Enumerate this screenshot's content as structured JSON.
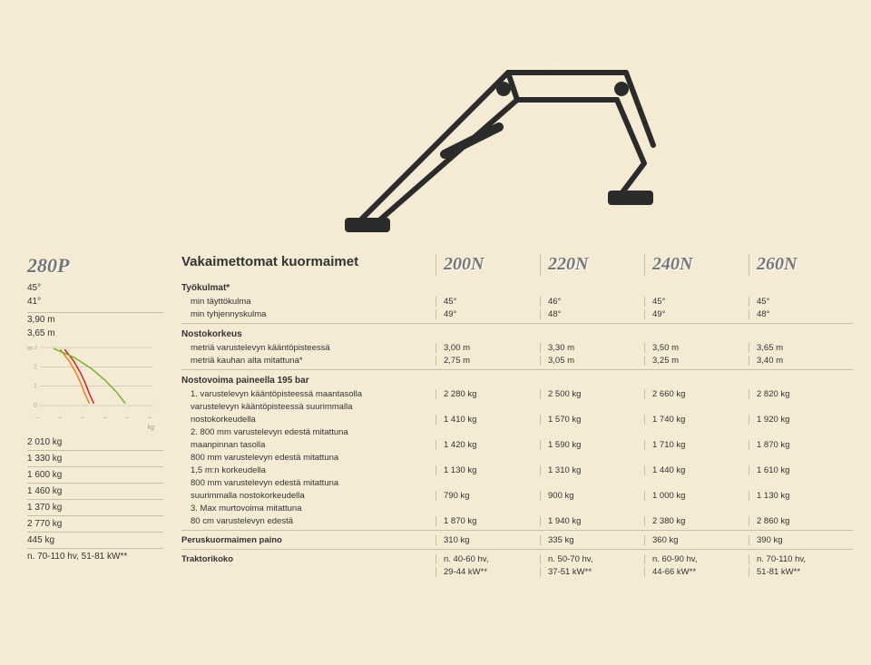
{
  "colors": {
    "page_bg": "#f5ebd4",
    "text": "#333333",
    "muted": "#777777",
    "rule": "#c8bfa8",
    "chart_axis": "#aaaaaa",
    "curve_orange": "#f07c1c",
    "curve_red": "#d81f26",
    "curve_green": "#77b02a"
  },
  "typography": {
    "body_family": "Helvetica Neue, Arial, sans-serif",
    "body_size_pt": 10,
    "model_family": "Georgia, serif",
    "model_size_pt": 22,
    "model_style": "italic bold",
    "heading_size_pt": 15
  },
  "left": {
    "model": "280P",
    "angle1": "45°",
    "angle2": "41°",
    "height1": "3,90 m",
    "height2": "3,65 m",
    "chart": {
      "type": "line",
      "y_label": "m",
      "x_label": "kg",
      "x_ticks": [
        "500",
        "1 000",
        "1 500",
        "2 000",
        "2 500",
        "3 000"
      ],
      "y_ticks": [
        "0",
        "1",
        "2",
        "3"
      ],
      "xlim": [
        500,
        3000
      ],
      "ylim": [
        0,
        3
      ],
      "bg": "#f5ebd4",
      "axis_color": "#aaaaaa",
      "tick_fontsize": 7,
      "curves": [
        {
          "color": "#f07c1c",
          "width": 1.5,
          "points": [
            [
              1600,
              0.1
            ],
            [
              1500,
              0.6
            ],
            [
              1400,
              1.2
            ],
            [
              1300,
              1.7
            ],
            [
              1150,
              2.3
            ],
            [
              950,
              2.9
            ]
          ]
        },
        {
          "color": "#d81f26",
          "width": 1.5,
          "points": [
            [
              1700,
              0.1
            ],
            [
              1600,
              0.6
            ],
            [
              1500,
              1.2
            ],
            [
              1400,
              1.7
            ],
            [
              1250,
              2.3
            ],
            [
              1050,
              2.9
            ]
          ]
        },
        {
          "color": "#77b02a",
          "width": 1.5,
          "points": [
            [
              2400,
              0.1
            ],
            [
              2200,
              0.7
            ],
            [
              1950,
              1.3
            ],
            [
              1650,
              1.9
            ],
            [
              1250,
              2.5
            ],
            [
              800,
              2.95
            ]
          ]
        }
      ]
    },
    "side_values": [
      "2 010 kg",
      "1 330 kg",
      "1 600 kg",
      "1 460 kg",
      "1 370 kg",
      "2 770 kg",
      "445 kg",
      "n. 70-110 hv, 51-81 kW**"
    ]
  },
  "spec": {
    "heading": "Vakaimettomat kuormaimet",
    "models": [
      "200N",
      "220N",
      "240N",
      "260N"
    ],
    "sections": [
      {
        "title": "Työkulmat*",
        "rows": [
          {
            "label": "min täyttökulma",
            "vals": [
              "45°",
              "46°",
              "45°",
              "45°"
            ]
          },
          {
            "label": "min tyhjennyskulma",
            "vals": [
              "49°",
              "48°",
              "49°",
              "48°"
            ]
          }
        ]
      },
      {
        "title": "Nostokorkeus",
        "rows": [
          {
            "label": "metriä varustelevyn kääntöpisteessä",
            "vals": [
              "3,00 m",
              "3,30 m",
              "3,50 m",
              "3,65 m"
            ]
          },
          {
            "label": "metriä kauhan alta mitattuna*",
            "vals": [
              "2,75 m",
              "3,05 m",
              "3,25 m",
              "3,40 m"
            ]
          }
        ]
      },
      {
        "title": "Nostovoima paineella 195 bar",
        "rows": [
          {
            "label": "1. varustelevyn kääntöpisteessä maantasolla",
            "vals": [
              "2 280 kg",
              "2 500 kg",
              "2 660 kg",
              "2 820 kg"
            ]
          },
          {
            "label": "varustelevyn kääntöpisteessä suurimmalla",
            "vals": [
              "",
              "",
              "",
              ""
            ],
            "nocols": true
          },
          {
            "label": "nostokorkeudella",
            "vals": [
              "1 410 kg",
              "1 570 kg",
              "1 740 kg",
              "1 920 kg"
            ]
          },
          {
            "label": "2. 800 mm varustelevyn edestä mitattuna",
            "vals": [
              "",
              "",
              "",
              ""
            ],
            "nocols": true
          },
          {
            "label": "maanpinnan tasolla",
            "vals": [
              "1 420 kg",
              "1 590 kg",
              "1 710 kg",
              "1 870 kg"
            ]
          },
          {
            "label": "800 mm varustelevyn edestä mitattuna",
            "vals": [
              "",
              "",
              "",
              ""
            ],
            "nocols": true
          },
          {
            "label": "1,5 m:n korkeudella",
            "vals": [
              "1 130 kg",
              "1 310 kg",
              "1 440 kg",
              "1 610 kg"
            ]
          },
          {
            "label": "800 mm varustelevyn edestä mitattuna",
            "vals": [
              "",
              "",
              "",
              ""
            ],
            "nocols": true
          },
          {
            "label": "suurimmalla nostokorkeudella",
            "vals": [
              "790 kg",
              "900 kg",
              "1 000 kg",
              "1 130 kg"
            ]
          },
          {
            "label": "3. Max murtovoima mitattuna",
            "vals": [
              "",
              "",
              "",
              ""
            ],
            "nocols": true
          },
          {
            "label": "80 cm varustelevyn edestä",
            "vals": [
              "1 870 kg",
              "1 940 kg",
              "2 380 kg",
              "2 860 kg"
            ]
          }
        ]
      }
    ],
    "footer_rows": [
      {
        "label": "Peruskuormaimen paino",
        "vals": [
          "310 kg",
          "335 kg",
          "360 kg",
          "390 kg"
        ]
      },
      {
        "label": "Traktorikoko",
        "vals": [
          "n. 40-60 hv,",
          "n. 50-70 hv,",
          "n. 60-90 hv,",
          "n. 70-110 hv,"
        ]
      },
      {
        "label": "",
        "vals": [
          "29-44 kW**",
          "37-51 kW**",
          "44-66 kW**",
          "51-81 kW**"
        ]
      }
    ]
  }
}
